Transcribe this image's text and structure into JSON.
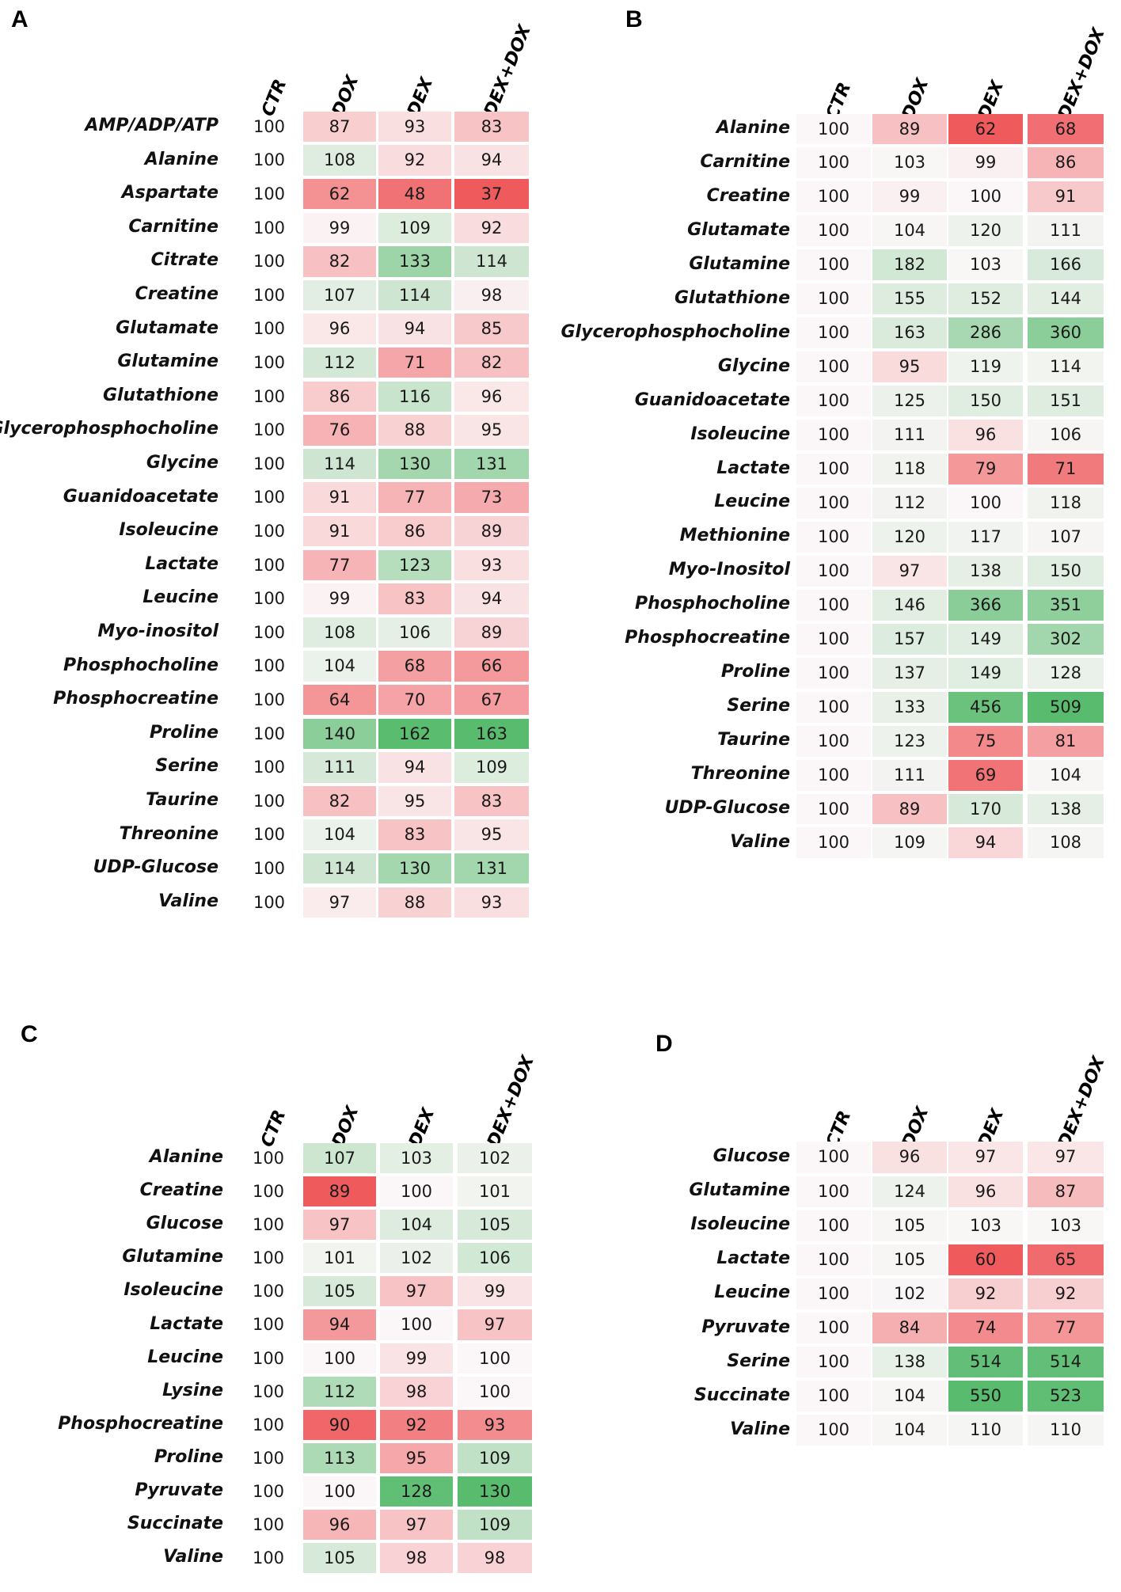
{
  "colors": {
    "low": "#ef5a5d",
    "neutral": "#fbf7f8",
    "high": "#58bb6d"
  },
  "chart_data": [
    {
      "type": "table",
      "label": "A",
      "columns": [
        "CTR",
        "DOX",
        "DEX",
        "DEX+DOX"
      ],
      "rows": [
        {
          "name": "AMP/ADP/ATP",
          "values": [
            100,
            87,
            93,
            83
          ]
        },
        {
          "name": "Alanine",
          "values": [
            100,
            108,
            92,
            94
          ]
        },
        {
          "name": "Aspartate",
          "values": [
            100,
            62,
            48,
            37
          ]
        },
        {
          "name": "Carnitine",
          "values": [
            100,
            99,
            109,
            92
          ]
        },
        {
          "name": "Citrate",
          "values": [
            100,
            82,
            133,
            114
          ]
        },
        {
          "name": "Creatine",
          "values": [
            100,
            107,
            114,
            98
          ]
        },
        {
          "name": "Glutamate",
          "values": [
            100,
            96,
            94,
            85
          ]
        },
        {
          "name": "Glutamine",
          "values": [
            100,
            112,
            71,
            82
          ]
        },
        {
          "name": "Glutathione",
          "values": [
            100,
            86,
            116,
            96
          ]
        },
        {
          "name": "Glycerophosphocholine",
          "values": [
            100,
            76,
            88,
            95
          ]
        },
        {
          "name": "Glycine",
          "values": [
            100,
            114,
            130,
            131
          ]
        },
        {
          "name": "Guanidoacetate",
          "values": [
            100,
            91,
            77,
            73
          ]
        },
        {
          "name": "Isoleucine",
          "values": [
            100,
            91,
            86,
            89
          ]
        },
        {
          "name": "Lactate",
          "values": [
            100,
            77,
            123,
            93
          ]
        },
        {
          "name": "Leucine",
          "values": [
            100,
            99,
            83,
            94
          ]
        },
        {
          "name": "Myo-inositol",
          "values": [
            100,
            108,
            106,
            89
          ]
        },
        {
          "name": "Phosphocholine",
          "values": [
            100,
            104,
            68,
            66
          ]
        },
        {
          "name": "Phosphocreatine",
          "values": [
            100,
            64,
            70,
            67
          ]
        },
        {
          "name": "Proline",
          "values": [
            100,
            140,
            162,
            163
          ]
        },
        {
          "name": "Serine",
          "values": [
            100,
            111,
            94,
            109
          ]
        },
        {
          "name": "Taurine",
          "values": [
            100,
            82,
            95,
            83
          ]
        },
        {
          "name": "Threonine",
          "values": [
            100,
            104,
            83,
            95
          ]
        },
        {
          "name": "UDP-Glucose",
          "values": [
            100,
            114,
            130,
            131
          ]
        },
        {
          "name": "Valine",
          "values": [
            100,
            97,
            88,
            93
          ]
        }
      ]
    },
    {
      "type": "table",
      "label": "B",
      "columns": [
        "CTR",
        "DOX",
        "DEX",
        "DEX+DOX"
      ],
      "rows": [
        {
          "name": "Alanine",
          "values": [
            100,
            89,
            62,
            68
          ]
        },
        {
          "name": "Carnitine",
          "values": [
            100,
            103,
            99,
            86
          ]
        },
        {
          "name": "Creatine",
          "values": [
            100,
            99,
            100,
            91
          ]
        },
        {
          "name": "Glutamate",
          "values": [
            100,
            104,
            120,
            111
          ]
        },
        {
          "name": "Glutamine",
          "values": [
            100,
            182,
            103,
            166
          ]
        },
        {
          "name": "Glutathione",
          "values": [
            100,
            155,
            152,
            144
          ]
        },
        {
          "name": "Glycerophosphocholine",
          "values": [
            100,
            163,
            286,
            360
          ]
        },
        {
          "name": "Glycine",
          "values": [
            100,
            95,
            119,
            114
          ]
        },
        {
          "name": "Guanidoacetate",
          "values": [
            100,
            125,
            150,
            151
          ]
        },
        {
          "name": "Isoleucine",
          "values": [
            100,
            111,
            96,
            106
          ]
        },
        {
          "name": "Lactate",
          "values": [
            100,
            118,
            79,
            71
          ]
        },
        {
          "name": "Leucine",
          "values": [
            100,
            112,
            100,
            118
          ]
        },
        {
          "name": "Methionine",
          "values": [
            100,
            120,
            117,
            107
          ]
        },
        {
          "name": "Myo-Inositol",
          "values": [
            100,
            97,
            138,
            150
          ]
        },
        {
          "name": "Phosphocholine",
          "values": [
            100,
            146,
            366,
            351
          ]
        },
        {
          "name": "Phosphocreatine",
          "values": [
            100,
            157,
            149,
            302
          ]
        },
        {
          "name": "Proline",
          "values": [
            100,
            137,
            149,
            128
          ]
        },
        {
          "name": "Serine",
          "values": [
            100,
            133,
            456,
            509
          ]
        },
        {
          "name": "Taurine",
          "values": [
            100,
            123,
            75,
            81
          ]
        },
        {
          "name": "Threonine",
          "values": [
            100,
            111,
            69,
            104
          ]
        },
        {
          "name": "UDP-Glucose",
          "values": [
            100,
            89,
            170,
            138
          ]
        },
        {
          "name": "Valine",
          "values": [
            100,
            109,
            94,
            108
          ]
        }
      ]
    },
    {
      "type": "table",
      "label": "C",
      "columns": [
        "CTR",
        "DOX",
        "DEX",
        "DEX+DOX"
      ],
      "rows": [
        {
          "name": "Alanine",
          "values": [
            100,
            107,
            103,
            102
          ]
        },
        {
          "name": "Creatine",
          "values": [
            100,
            89,
            100,
            101
          ]
        },
        {
          "name": "Glucose",
          "values": [
            100,
            97,
            104,
            105
          ]
        },
        {
          "name": "Glutamine",
          "values": [
            100,
            101,
            102,
            106
          ]
        },
        {
          "name": "Isoleucine",
          "values": [
            100,
            105,
            97,
            99
          ]
        },
        {
          "name": "Lactate",
          "values": [
            100,
            94,
            100,
            97
          ]
        },
        {
          "name": "Leucine",
          "values": [
            100,
            100,
            99,
            100
          ]
        },
        {
          "name": "Lysine",
          "values": [
            100,
            112,
            98,
            100
          ]
        },
        {
          "name": "Phosphocreatine",
          "values": [
            100,
            90,
            92,
            93
          ]
        },
        {
          "name": "Proline",
          "values": [
            100,
            113,
            95,
            109
          ]
        },
        {
          "name": "Pyruvate",
          "values": [
            100,
            100,
            128,
            130
          ]
        },
        {
          "name": "Succinate",
          "values": [
            100,
            96,
            97,
            109
          ]
        },
        {
          "name": "Valine",
          "values": [
            100,
            105,
            98,
            98
          ]
        }
      ]
    },
    {
      "type": "table",
      "label": "D",
      "columns": [
        "CTR",
        "DOX",
        "DEX",
        "DEX+DOX"
      ],
      "rows": [
        {
          "name": "Glucose",
          "values": [
            100,
            96,
            97,
            97
          ]
        },
        {
          "name": "Glutamine",
          "values": [
            100,
            124,
            96,
            87
          ]
        },
        {
          "name": "Isoleucine",
          "values": [
            100,
            105,
            103,
            103
          ]
        },
        {
          "name": "Lactate",
          "values": [
            100,
            105,
            60,
            65
          ]
        },
        {
          "name": "Leucine",
          "values": [
            100,
            102,
            92,
            92
          ]
        },
        {
          "name": "Pyruvate",
          "values": [
            100,
            84,
            74,
            77
          ]
        },
        {
          "name": "Serine",
          "values": [
            100,
            138,
            514,
            514
          ]
        },
        {
          "name": "Succinate",
          "values": [
            100,
            104,
            550,
            523
          ]
        },
        {
          "name": "Valine",
          "values": [
            100,
            104,
            110,
            110
          ]
        }
      ]
    }
  ]
}
